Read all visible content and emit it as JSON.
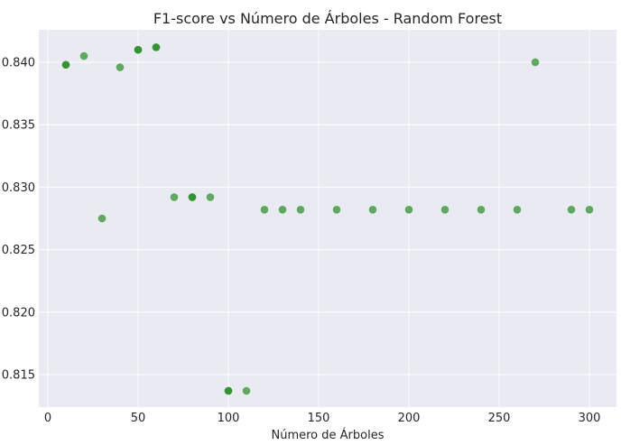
{
  "chart_data": {
    "type": "scatter",
    "title": "F1-score vs Número de Árboles - Random Forest",
    "xlabel": "Número de Árboles",
    "ylabel": "",
    "xlim": [
      -5,
      315
    ],
    "ylim": [
      0.8124,
      0.8426
    ],
    "xticks": [
      0,
      50,
      100,
      150,
      200,
      250,
      300
    ],
    "yticks": [
      0.815,
      0.82,
      0.825,
      0.83,
      0.835,
      0.84
    ],
    "ytick_labels": [
      "0.815",
      "0.820",
      "0.825",
      "0.830",
      "0.835",
      "0.840"
    ],
    "grid": true,
    "colors": {
      "background": "#eaeaf2",
      "point": "#228b22"
    },
    "points": [
      {
        "x": 10,
        "y": 0.8398
      },
      {
        "x": 10,
        "y": 0.8398
      },
      {
        "x": 20,
        "y": 0.8405
      },
      {
        "x": 30,
        "y": 0.8275
      },
      {
        "x": 40,
        "y": 0.8396
      },
      {
        "x": 50,
        "y": 0.841
      },
      {
        "x": 50,
        "y": 0.841
      },
      {
        "x": 60,
        "y": 0.8412
      },
      {
        "x": 60,
        "y": 0.8412
      },
      {
        "x": 70,
        "y": 0.8292
      },
      {
        "x": 80,
        "y": 0.8292
      },
      {
        "x": 80,
        "y": 0.8292
      },
      {
        "x": 90,
        "y": 0.8292
      },
      {
        "x": 100,
        "y": 0.8137
      },
      {
        "x": 100,
        "y": 0.8137
      },
      {
        "x": 110,
        "y": 0.8137
      },
      {
        "x": 120,
        "y": 0.8282
      },
      {
        "x": 130,
        "y": 0.8282
      },
      {
        "x": 140,
        "y": 0.8282
      },
      {
        "x": 160,
        "y": 0.8282
      },
      {
        "x": 180,
        "y": 0.8282
      },
      {
        "x": 200,
        "y": 0.8282
      },
      {
        "x": 220,
        "y": 0.8282
      },
      {
        "x": 240,
        "y": 0.8282
      },
      {
        "x": 260,
        "y": 0.8282
      },
      {
        "x": 270,
        "y": 0.84
      },
      {
        "x": 290,
        "y": 0.8282
      },
      {
        "x": 300,
        "y": 0.8282
      }
    ]
  }
}
